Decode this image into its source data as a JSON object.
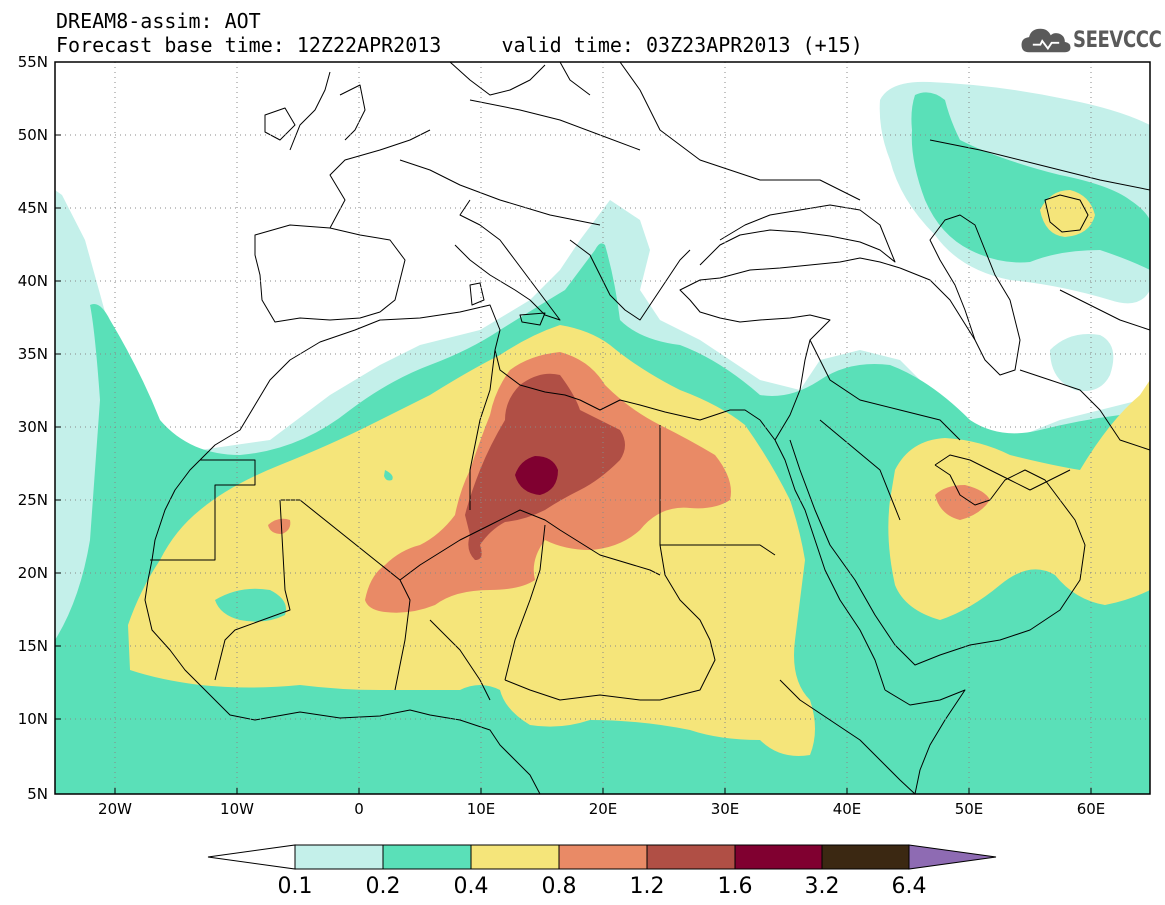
{
  "header": {
    "title_line1": "DREAM8-assim: AOT",
    "title_line2": "Forecast base time: 12Z22APR2013     valid time: 03Z23APR2013 (+15)",
    "logo_text": "SEEVCCC",
    "logo_icon": "cloud-icon"
  },
  "map": {
    "lat_labels": [
      "55N",
      "50N",
      "45N",
      "40N",
      "35N",
      "30N",
      "25N",
      "20N",
      "15N",
      "10N",
      "5N"
    ],
    "lon_labels": [
      "20W",
      "10W",
      "0",
      "10E",
      "20E",
      "30E",
      "40E",
      "50E",
      "60E"
    ],
    "lon_range": [
      -25,
      65
    ],
    "lat_range": [
      5,
      55
    ],
    "grid": "dotted"
  },
  "colorbar": {
    "labels": [
      "0.1",
      "0.2",
      "0.4",
      "0.8",
      "1.2",
      "1.6",
      "3.2",
      "6.4"
    ],
    "colors": [
      "#ffffff",
      "#c4f0ea",
      "#5ae0b8",
      "#f5e57a",
      "#e98a66",
      "#b04f45",
      "#800030",
      "#3b2812",
      "#8e6bb3"
    ]
  }
}
